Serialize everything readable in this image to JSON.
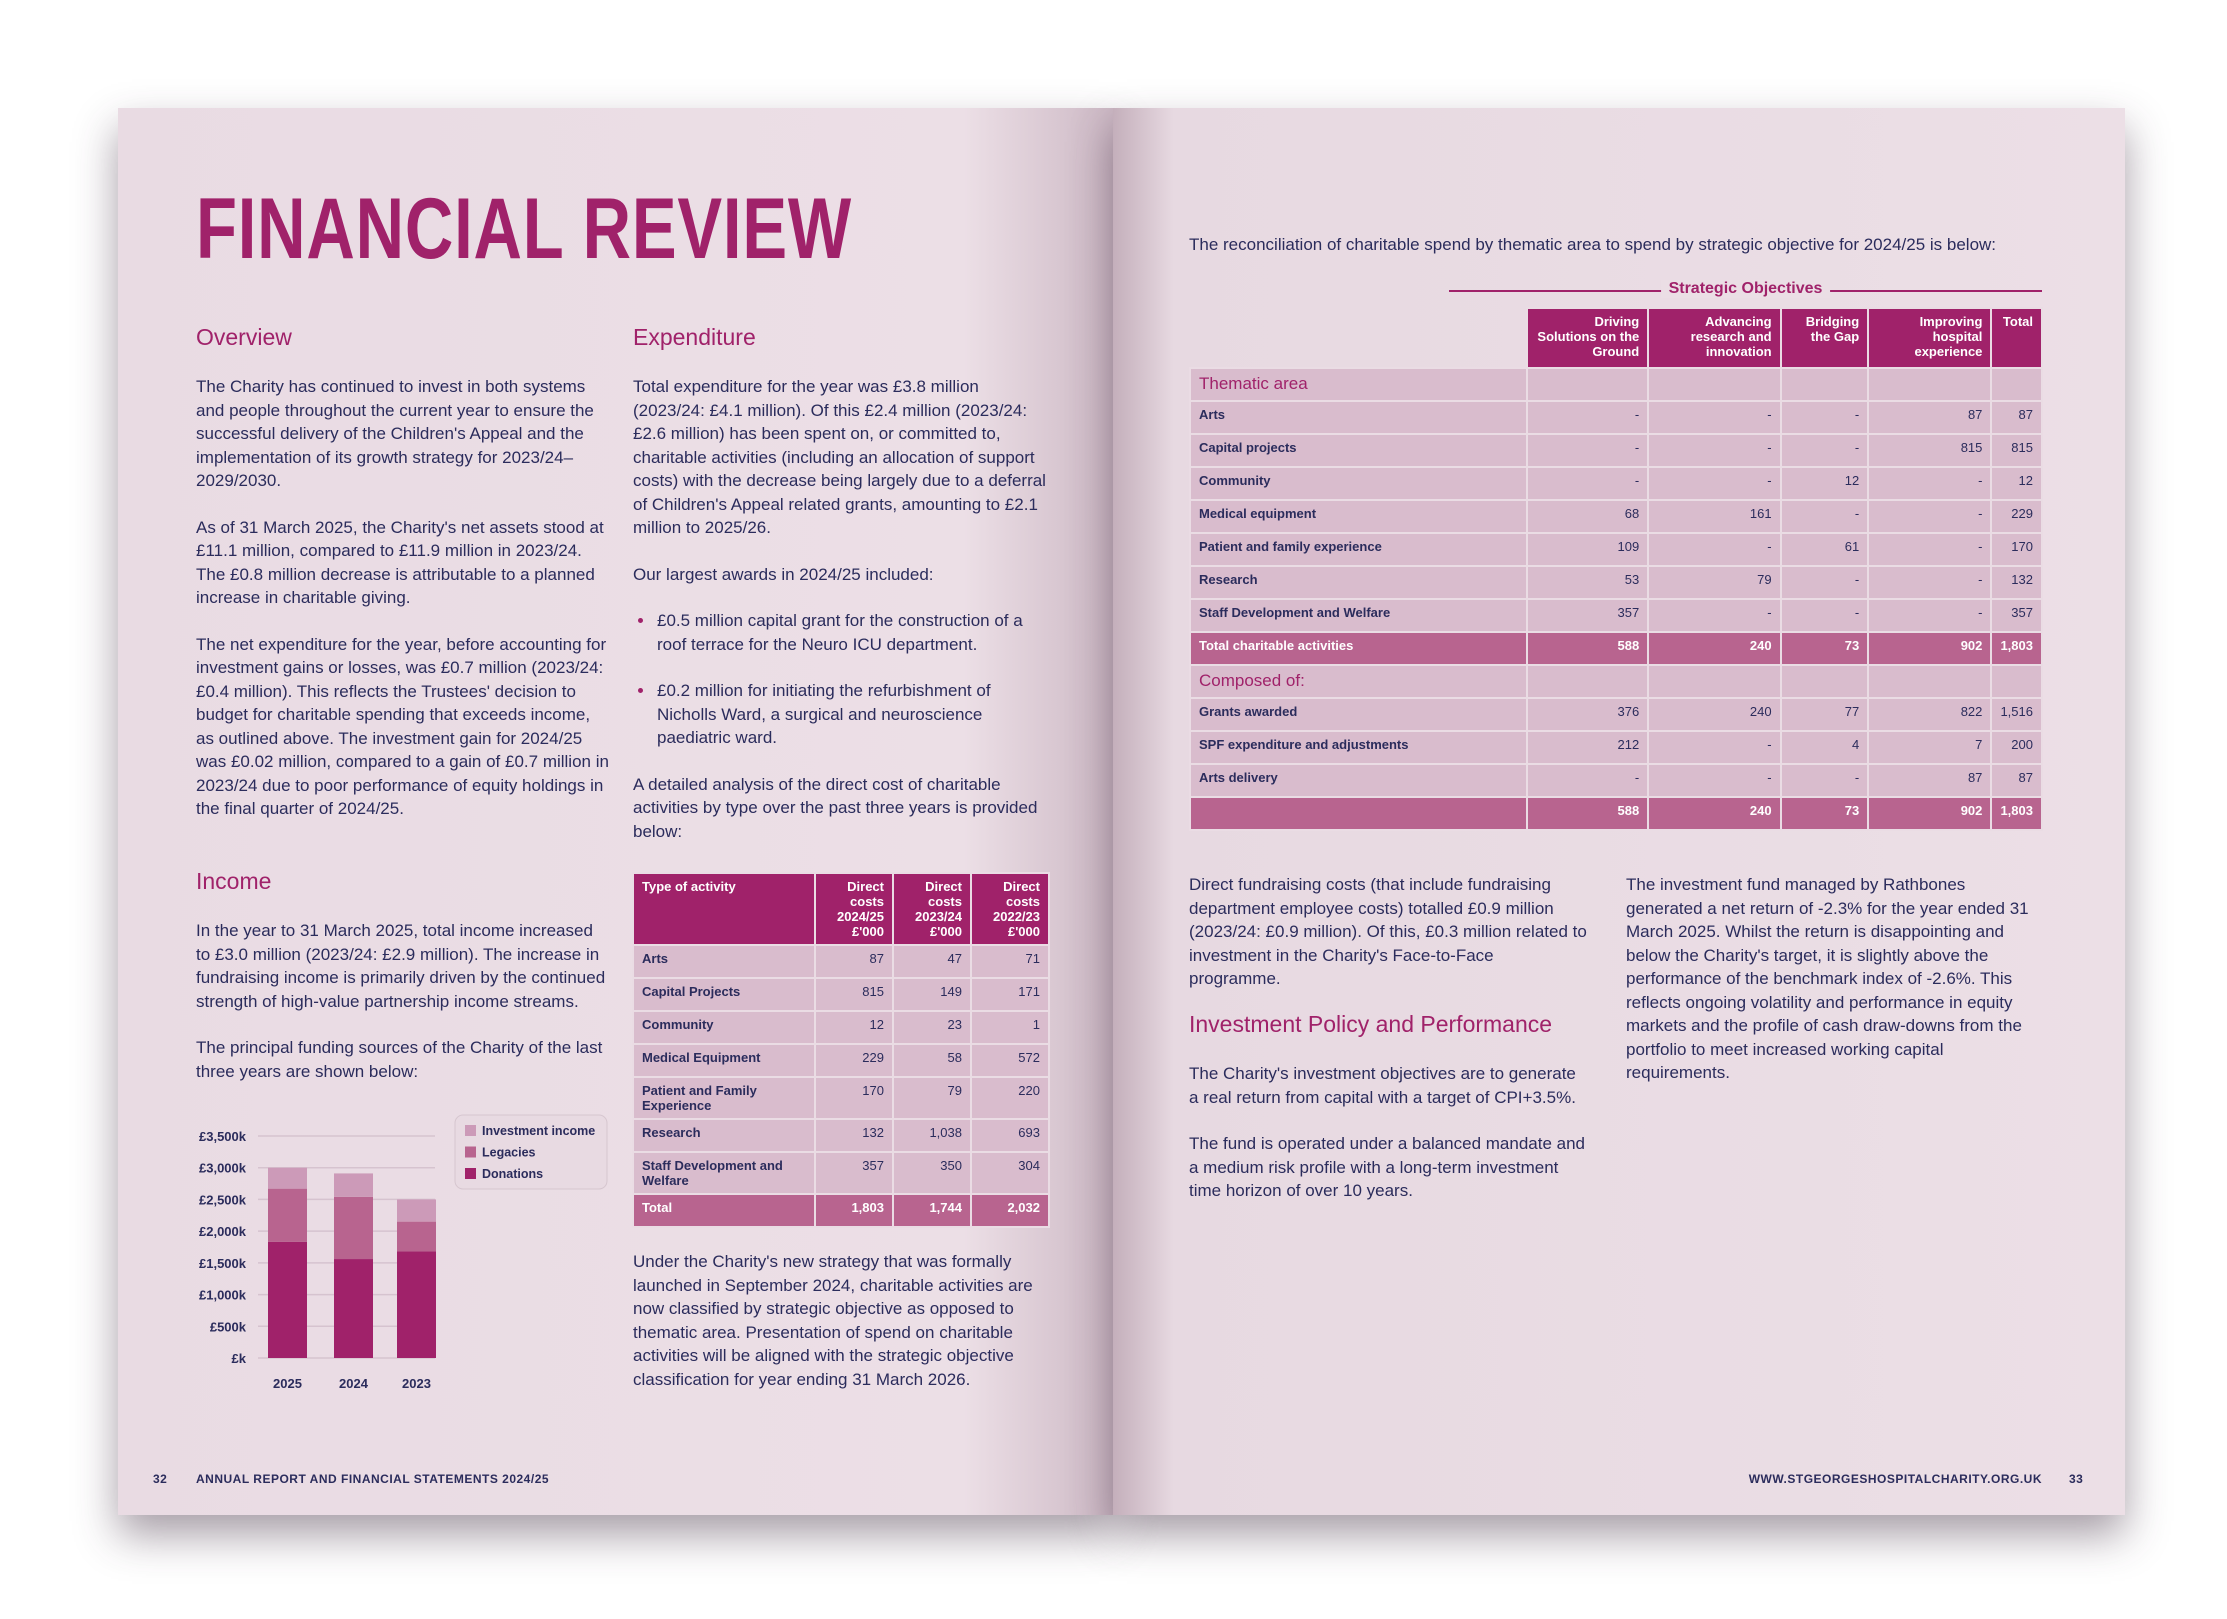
{
  "left": {
    "title": "FINANCIAL REVIEW",
    "overview": {
      "heading": "Overview",
      "paragraphs": [
        "The Charity has continued to invest in both systems and people throughout the current year to ensure the successful delivery of the Children's Appeal and the implementation of its growth strategy for 2023/24–2029/2030.",
        "As of 31 March 2025, the Charity's net assets stood at £11.1 million, compared to £11.9 million in 2023/24. The £0.8 million decrease is attributable to a planned increase in charitable giving.",
        "The net expenditure for the year, before accounting for investment gains or losses, was £0.7 million (2023/24: £0.4 million). This reflects the Trustees' decision to budget for charitable spending that exceeds income, as outlined above. The investment gain for 2024/25 was £0.02 million, compared to a gain of £0.7 million in 2023/24 due to poor performance of equity holdings in the final quarter of 2024/25."
      ]
    },
    "income": {
      "heading": "Income",
      "paragraphs": [
        "In the year to 31 March 2025, total income increased to £3.0 million (2023/24: £2.9 million). The increase in fundraising income is primarily driven by the continued strength of high-value partnership income streams.",
        "The principal funding sources of the Charity of the last three years are shown below:"
      ]
    },
    "expenditure": {
      "heading": "Expenditure",
      "paragraphs": [
        "Total expenditure for the year was £3.8 million (2023/24: £4.1 million). Of this £2.4 million (2023/24: £2.6 million) has been spent on, or committed to, charitable activities (including an allocation of support costs) with the decrease being largely due to a deferral of Children's Appeal related grants, amounting to £2.1 million to 2025/26.",
        "Our largest awards in 2024/25 included:"
      ],
      "bullets": [
        "£0.5 million capital grant for the construction of a roof terrace for the Neuro ICU department.",
        "£0.2 million for initiating the refurbishment of Nicholls Ward, a surgical and neuroscience paediatric ward."
      ],
      "after_bullets": "A detailed analysis of the direct cost of charitable activities by type over the past three years is provided below:",
      "closing": "Under the Charity's new strategy that was formally launched in September 2024, charitable activities are now classified by strategic objective as opposed to thematic area. Presentation of spend on charitable activities will be aligned with the strategic objective classification for year ending 31 March 2026."
    },
    "cost_table": {
      "headers": [
        "Type of activity",
        "Direct costs 2024/25 £'000",
        "Direct costs 2023/24 £'000",
        "Direct costs 2022/23 £'000"
      ],
      "rows": [
        [
          "Arts",
          "87",
          "47",
          "71"
        ],
        [
          "Capital Projects",
          "815",
          "149",
          "171"
        ],
        [
          "Community",
          "12",
          "23",
          "1"
        ],
        [
          "Medical Equipment",
          "229",
          "58",
          "572"
        ],
        [
          "Patient and Family Experience",
          "170",
          "79",
          "220"
        ],
        [
          "Research",
          "132",
          "1,038",
          "693"
        ],
        [
          "Staff Development and Welfare",
          "357",
          "350",
          "304"
        ]
      ],
      "total": [
        "Total",
        "1,803",
        "1,744",
        "2,032"
      ]
    },
    "footer": {
      "page": "32",
      "text": "ANNUAL REPORT AND FINANCIAL STATEMENTS 2024/25"
    }
  },
  "chart_data": {
    "type": "bar",
    "stacked": true,
    "categories": [
      "2025",
      "2024",
      "2023"
    ],
    "series": [
      {
        "name": "Donations",
        "color": "#a0226a",
        "values": [
          1830,
          1560,
          1680
        ]
      },
      {
        "name": "Legacies",
        "color": "#b8648f",
        "values": [
          840,
          980,
          470
        ]
      },
      {
        "name": "Investment income",
        "color": "#cc9ab8",
        "values": [
          330,
          370,
          350
        ]
      }
    ],
    "ylim": [
      0,
      3500
    ],
    "yticks": [
      "£k",
      "£500k",
      "£1,000k",
      "£1,500k",
      "£2,000k",
      "£2,500k",
      "£3,000k",
      "£3,500k"
    ],
    "grid": true,
    "legend": "top-right",
    "legend_order": [
      "Investment income",
      "Legacies",
      "Donations"
    ]
  },
  "right": {
    "intro": "The reconciliation of charitable spend by thematic area to spend by strategic objective for 2024/25 is below:",
    "group_label": "Strategic Objectives",
    "headers": [
      "Driving Solutions on the Ground",
      "Advancing research and innovation",
      "Bridging the Gap",
      "Improving hospital experience",
      "Total"
    ],
    "rows": [
      {
        "type": "sec",
        "label": "Thematic area",
        "v": [
          "",
          "",
          "",
          "",
          ""
        ]
      },
      {
        "label": "Arts",
        "v": [
          "-",
          "-",
          "-",
          "87",
          "87"
        ]
      },
      {
        "label": "Capital projects",
        "v": [
          "-",
          "-",
          "-",
          "815",
          "815"
        ]
      },
      {
        "label": "Community",
        "v": [
          "-",
          "-",
          "12",
          "-",
          "12"
        ]
      },
      {
        "label": "Medical equipment",
        "v": [
          "68",
          "161",
          "-",
          "-",
          "229"
        ]
      },
      {
        "label": "Patient and family experience",
        "v": [
          "109",
          "-",
          "61",
          "-",
          "170"
        ]
      },
      {
        "label": "Research",
        "v": [
          "53",
          "79",
          "-",
          "-",
          "132"
        ]
      },
      {
        "label": "Staff Development and Welfare",
        "v": [
          "357",
          "-",
          "-",
          "-",
          "357"
        ]
      },
      {
        "type": "tot",
        "label": "Total charitable activities",
        "v": [
          "588",
          "240",
          "73",
          "902",
          "1,803"
        ]
      },
      {
        "type": "sec",
        "label": "Composed of:",
        "v": [
          "",
          "",
          "",
          "",
          ""
        ]
      },
      {
        "label": "Grants awarded",
        "v": [
          "376",
          "240",
          "77",
          "822",
          "1,516"
        ]
      },
      {
        "label": "SPF expenditure and adjustments",
        "v": [
          "212",
          "-",
          "4",
          "7",
          "200"
        ]
      },
      {
        "label": "Arts delivery",
        "v": [
          "-",
          "-",
          "-",
          "87",
          "87"
        ]
      },
      {
        "type": "tot",
        "label": "",
        "v": [
          "588",
          "240",
          "73",
          "902",
          "1,803"
        ]
      }
    ],
    "fundraising": "Direct fundraising costs (that include fundraising department employee costs) totalled £0.9 million (2023/24: £0.9 million). Of this, £0.3 million related to investment in the Charity's Face-to-Face programme.",
    "investment_heading": "Investment Policy and Performance",
    "investment_paragraphs": [
      "The Charity's investment objectives are to generate a real return from capital with a target of CPI+3.5%.",
      "The fund is operated under a balanced mandate and a medium risk profile with a long-term investment time horizon of over 10 years."
    ],
    "rathbones": "The investment fund managed by Rathbones generated a net return of -2.3% for the year ended 31 March 2025. Whilst the return is disappointing and below the Charity's target, it is slightly above the performance of the benchmark index of -2.6%. This reflects ongoing volatility and performance in equity markets and the profile of cash draw-downs from the portfolio to meet increased working capital requirements.",
    "footer": {
      "url": "WWW.STGEORGESHOSPITALCHARITY.ORG.UK",
      "page": "33"
    }
  }
}
